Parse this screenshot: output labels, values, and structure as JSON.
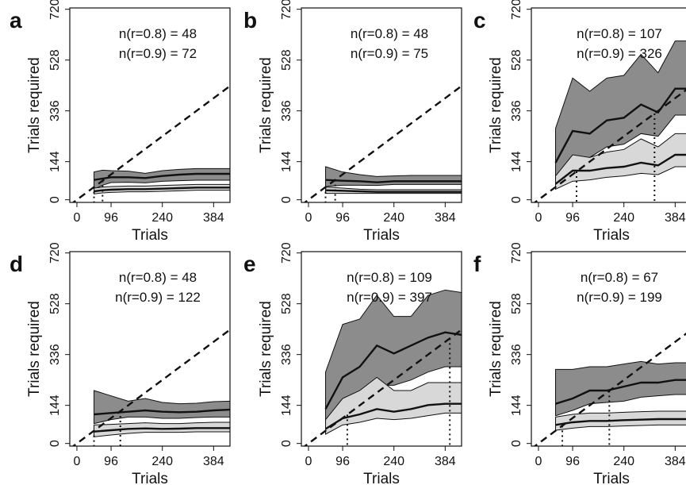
{
  "figure": {
    "panels": [
      "a",
      "b",
      "c",
      "d",
      "e",
      "f"
    ]
  },
  "chart_data": [
    {
      "panel": "a",
      "type": "line",
      "xlabel": "Trials",
      "ylabel": "Trials required",
      "xticks": [
        0,
        96,
        240,
        384
      ],
      "yticks": [
        0,
        144,
        336,
        528,
        720
      ],
      "xlim": [
        -20,
        430
      ],
      "ylim": [
        -10,
        725
      ],
      "annotations": [
        "n(r=0.8) = 48",
        "n(r=0.9) = 72"
      ],
      "identity_line": true,
      "crossings": [
        48,
        72
      ],
      "x": [
        48,
        72,
        96,
        144,
        192,
        240,
        288,
        336,
        384,
        432
      ],
      "series": [
        {
          "shade": "dark",
          "median": [
            75,
            80,
            85,
            85,
            82,
            90,
            95,
            98,
            98,
            98
          ],
          "lower": [
            40,
            55,
            65,
            66,
            64,
            70,
            72,
            74,
            74,
            74
          ],
          "upper": [
            105,
            112,
            110,
            108,
            100,
            110,
            115,
            118,
            118,
            118
          ]
        },
        {
          "shade": "light",
          "median": [
            32,
            36,
            38,
            40,
            40,
            42,
            44,
            46,
            46,
            46
          ],
          "lower": [
            22,
            26,
            28,
            30,
            30,
            32,
            34,
            36,
            36,
            36
          ],
          "upper": [
            44,
            48,
            50,
            52,
            52,
            54,
            56,
            58,
            58,
            58
          ]
        }
      ]
    },
    {
      "panel": "b",
      "type": "line",
      "xlabel": "Trials",
      "ylabel": "Trials required",
      "xticks": [
        0,
        96,
        240,
        384
      ],
      "yticks": [
        0,
        144,
        336,
        528,
        720
      ],
      "xlim": [
        -20,
        430
      ],
      "ylim": [
        -10,
        725
      ],
      "annotations": [
        "n(r=0.8) = 48",
        "n(r=0.9) = 75"
      ],
      "identity_line": true,
      "crossings": [
        48,
        75
      ],
      "x": [
        48,
        96,
        144,
        192,
        240,
        288,
        336,
        384,
        432
      ],
      "series": [
        {
          "shade": "dark",
          "median": [
            75,
            72,
            70,
            66,
            70,
            70,
            70,
            70,
            70
          ],
          "lower": [
            50,
            55,
            55,
            54,
            58,
            58,
            58,
            58,
            58
          ],
          "upper": [
            125,
            105,
            95,
            88,
            90,
            92,
            92,
            92,
            92
          ]
        },
        {
          "shade": "light",
          "median": [
            36,
            34,
            32,
            30,
            30,
            30,
            30,
            30,
            30
          ],
          "lower": [
            24,
            24,
            24,
            24,
            24,
            24,
            24,
            24,
            24
          ],
          "upper": [
            48,
            44,
            40,
            38,
            38,
            38,
            38,
            38,
            38
          ]
        }
      ]
    },
    {
      "panel": "c",
      "type": "line",
      "xlabel": "Trials",
      "ylabel": "Trials required",
      "xticks": [
        0,
        96,
        240,
        384
      ],
      "yticks": [
        0,
        144,
        336,
        528,
        720
      ],
      "xlim": [
        -20,
        430
      ],
      "ylim": [
        -10,
        725
      ],
      "annotations": [
        "n(r=0.8) = 107",
        "n(r=0.9) = 326"
      ],
      "identity_line": true,
      "crossings": [
        107,
        326
      ],
      "x": [
        48,
        96,
        144,
        192,
        240,
        288,
        336,
        384,
        432
      ],
      "series": [
        {
          "shade": "dark",
          "median": [
            140,
            260,
            250,
            300,
            310,
            360,
            330,
            420,
            420
          ],
          "lower": [
            80,
            160,
            160,
            200,
            210,
            250,
            240,
            320,
            320
          ],
          "upper": [
            270,
            460,
            410,
            460,
            470,
            550,
            480,
            600,
            600
          ]
        },
        {
          "shade": "light",
          "median": [
            60,
            110,
            110,
            120,
            125,
            140,
            130,
            170,
            170
          ],
          "lower": [
            40,
            70,
            75,
            85,
            90,
            100,
            95,
            125,
            125
          ],
          "upper": [
            90,
            170,
            160,
            180,
            190,
            230,
            200,
            250,
            250
          ]
        }
      ]
    },
    {
      "panel": "d",
      "type": "line",
      "xlabel": "Trials",
      "ylabel": "Trials required",
      "xticks": [
        0,
        96,
        240,
        384
      ],
      "yticks": [
        0,
        144,
        336,
        528,
        720
      ],
      "xlim": [
        -20,
        430
      ],
      "ylim": [
        -10,
        725
      ],
      "annotations": [
        "n(r=0.8) = 48",
        "n(r=0.9) = 122"
      ],
      "identity_line": true,
      "crossings": [
        48,
        122
      ],
      "x": [
        48,
        96,
        144,
        192,
        240,
        288,
        336,
        384,
        432
      ],
      "series": [
        {
          "shade": "dark",
          "median": [
            110,
            115,
            120,
            125,
            120,
            118,
            120,
            125,
            128
          ],
          "lower": [
            75,
            90,
            100,
            100,
            95,
            95,
            98,
            100,
            100
          ],
          "upper": [
            200,
            180,
            160,
            170,
            155,
            150,
            152,
            158,
            160
          ]
        },
        {
          "shade": "light",
          "median": [
            45,
            50,
            55,
            57,
            55,
            56,
            58,
            58,
            58
          ],
          "lower": [
            25,
            32,
            38,
            42,
            42,
            42,
            44,
            44,
            44
          ],
          "upper": [
            70,
            72,
            75,
            78,
            75,
            75,
            78,
            80,
            80
          ]
        }
      ]
    },
    {
      "panel": "e",
      "type": "line",
      "xlabel": "Trials",
      "ylabel": "Trials required",
      "xticks": [
        0,
        96,
        240,
        384
      ],
      "yticks": [
        0,
        144,
        336,
        528,
        720
      ],
      "xlim": [
        -20,
        430
      ],
      "ylim": [
        -10,
        725
      ],
      "annotations": [
        "n(r=0.8) = 109",
        "n(r=0.9) = 397"
      ],
      "identity_line": true,
      "crossings": [
        109,
        397
      ],
      "x": [
        48,
        96,
        144,
        192,
        240,
        288,
        336,
        384,
        432
      ],
      "series": [
        {
          "shade": "dark",
          "median": [
            130,
            250,
            290,
            370,
            340,
            370,
            400,
            420,
            410
          ],
          "lower": [
            80,
            150,
            180,
            220,
            220,
            240,
            270,
            290,
            290
          ],
          "upper": [
            270,
            450,
            470,
            560,
            480,
            480,
            560,
            580,
            570
          ]
        },
        {
          "shade": "light",
          "median": [
            55,
            95,
            110,
            130,
            120,
            130,
            145,
            150,
            150
          ],
          "lower": [
            35,
            70,
            80,
            95,
            90,
            95,
            105,
            115,
            115
          ],
          "upper": [
            90,
            170,
            200,
            250,
            200,
            200,
            230,
            230,
            230
          ]
        }
      ]
    },
    {
      "panel": "f",
      "type": "line",
      "xlabel": "Trials",
      "ylabel": "Trials required",
      "xticks": [
        0,
        96,
        240,
        384
      ],
      "yticks": [
        0,
        144,
        336,
        528,
        720
      ],
      "xlim": [
        -20,
        430
      ],
      "ylim": [
        -10,
        725
      ],
      "annotations": [
        "n(r=0.8) = 67",
        "n(r=0.9) = 199"
      ],
      "identity_line": true,
      "crossings": [
        67,
        199
      ],
      "x": [
        48,
        96,
        144,
        192,
        240,
        288,
        336,
        384,
        432
      ],
      "series": [
        {
          "shade": "dark",
          "median": [
            150,
            170,
            200,
            200,
            215,
            230,
            230,
            240,
            240
          ],
          "lower": [
            105,
            125,
            150,
            155,
            160,
            175,
            180,
            185,
            185
          ],
          "upper": [
            280,
            280,
            290,
            290,
            300,
            310,
            300,
            305,
            305
          ]
        },
        {
          "shade": "light",
          "median": [
            70,
            80,
            85,
            85,
            88,
            90,
            92,
            92,
            92
          ],
          "lower": [
            50,
            58,
            64,
            64,
            66,
            68,
            70,
            70,
            70
          ],
          "upper": [
            100,
            110,
            115,
            115,
            118,
            120,
            122,
            122,
            122
          ]
        }
      ]
    }
  ]
}
